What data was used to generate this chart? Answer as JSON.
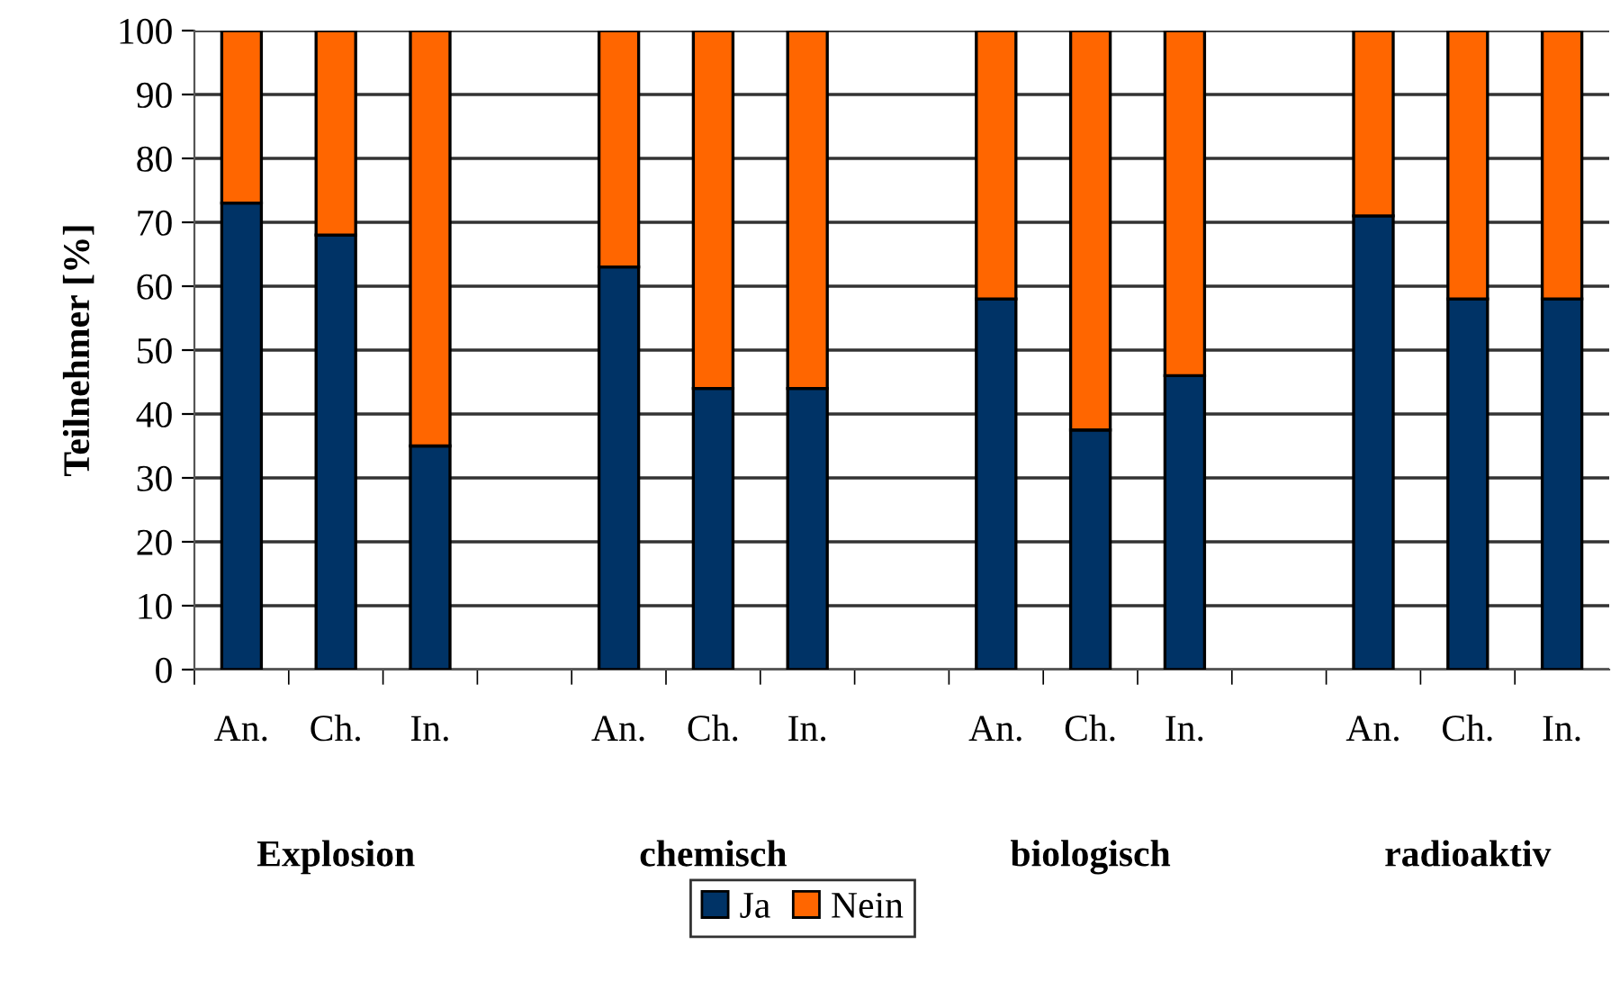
{
  "chart_data": {
    "type": "bar",
    "stacked": true,
    "categories": [
      "An.",
      "Ch.",
      "In.",
      null,
      "An.",
      "Ch.",
      "In.",
      null,
      "An.",
      "Ch.",
      "In.",
      null,
      "An.",
      "Ch.",
      "In."
    ],
    "series": [
      {
        "name": "Ja",
        "color": "#003366",
        "values": [
          73,
          68,
          35,
          null,
          63,
          44,
          44,
          null,
          58,
          37.5,
          46,
          null,
          71,
          58,
          58
        ]
      },
      {
        "name": "Nein",
        "color": "#ff6600",
        "values": [
          27,
          32,
          65,
          null,
          37,
          56,
          56,
          null,
          42,
          62.5,
          54,
          null,
          29,
          42,
          42
        ]
      }
    ],
    "ylabel": "Teilnehmer [%]",
    "ylim": [
      0,
      100
    ],
    "yticks": [
      0,
      10,
      20,
      30,
      40,
      50,
      60,
      70,
      80,
      90,
      100
    ],
    "grid": "y",
    "legend": "bottom",
    "annotations": [
      "Explosion",
      "chemisch",
      "biologisch",
      "radioaktiv"
    ]
  }
}
